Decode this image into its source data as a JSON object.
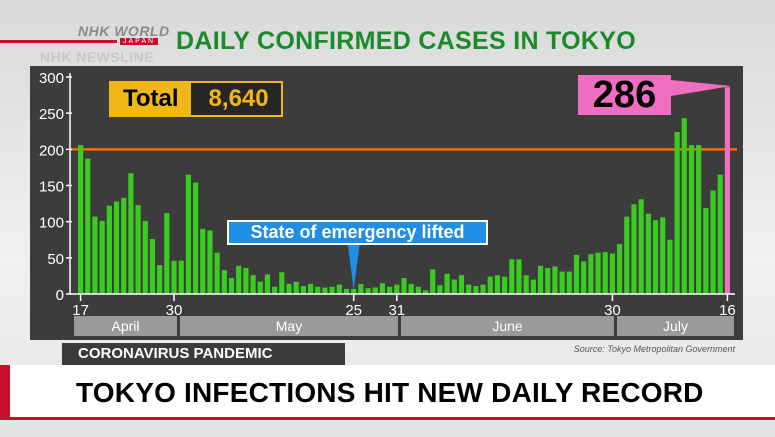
{
  "header": {
    "logo_nhk": "NHK WORLD",
    "logo_japan": "JAPAN",
    "newsline": "NHK NEWSLINE",
    "title": "DAILY CONFIRMED CASES IN TOKYO"
  },
  "totals": {
    "label": "Total",
    "value": "8,640"
  },
  "peak": {
    "value": "286"
  },
  "callout": {
    "text": "State of emergency lifted"
  },
  "months": [
    "April",
    "May",
    "June",
    "July"
  ],
  "source": "Source: Tokyo Metropolitan Government",
  "tag": "CORONAVIRUS PANDEMIC",
  "headline": "TOKYO INFECTIONS HIT NEW DAILY RECORD",
  "colors": {
    "bar": "#3bcc22",
    "threshold": "#ff6a00",
    "peak": "#f06ec0",
    "title": "#1a8a2a",
    "total": "#f2b716",
    "callout": "#1e8ee6"
  },
  "chart_data": {
    "type": "bar",
    "ylim": [
      0,
      300
    ],
    "yticks": [
      0,
      50,
      100,
      150,
      200,
      250,
      300
    ],
    "xtick_labels": [
      "17",
      "30",
      "25",
      "31",
      "30",
      "16"
    ],
    "reference_line": 200,
    "series": [
      {
        "values": [
          206,
          187,
          107,
          101,
          122,
          128,
          133,
          167,
          123,
          101,
          76,
          40,
          112,
          46,
          46,
          165,
          154,
          90,
          88,
          57,
          33,
          22,
          39,
          36,
          26,
          17,
          27,
          10,
          30,
          14,
          17,
          11,
          14,
          10,
          9,
          10,
          13,
          7,
          7,
          14,
          8,
          9,
          15,
          10,
          13,
          22,
          14,
          10,
          5,
          34,
          12,
          28,
          20,
          26,
          13,
          11,
          13,
          24,
          26,
          24,
          48,
          48,
          26,
          20,
          39,
          36,
          38,
          31,
          31,
          54,
          45,
          55,
          57,
          58,
          56,
          69,
          107,
          124,
          131,
          111,
          102,
          106,
          75,
          224,
          243,
          206,
          206,
          119,
          143,
          165,
          286
        ]
      }
    ]
  }
}
